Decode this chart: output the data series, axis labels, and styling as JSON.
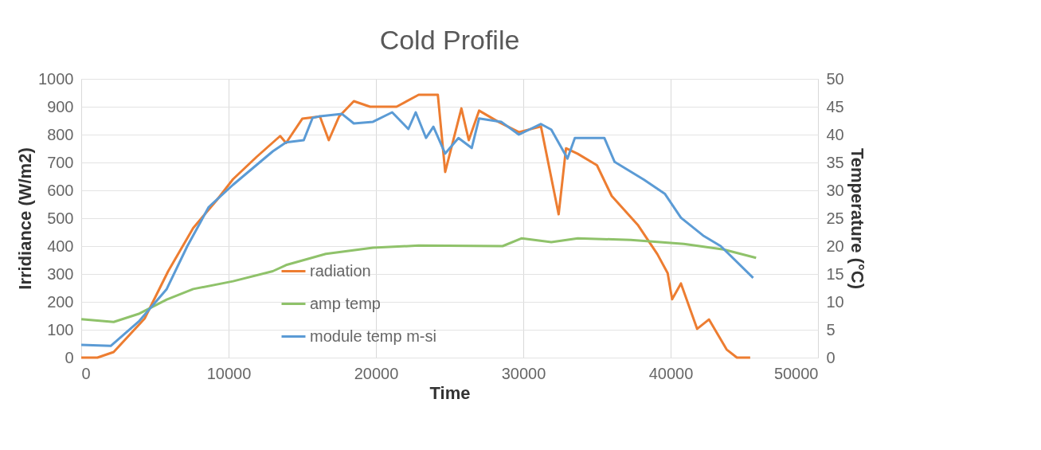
{
  "chart_data": {
    "type": "line",
    "title": "Cold Profile",
    "xlabel": "Time",
    "ylabel": "Irridiance (W/m2)",
    "y2label": "Temperature (°C)",
    "xlim": [
      0,
      50000
    ],
    "xticks": [
      0,
      10000,
      20000,
      30000,
      40000,
      50000
    ],
    "ylim": [
      0,
      1000
    ],
    "yticks": [
      0,
      100,
      200,
      300,
      400,
      500,
      600,
      700,
      800,
      900,
      1000
    ],
    "y2lim": [
      0,
      50
    ],
    "y2ticks": [
      0,
      5,
      10,
      15,
      20,
      25,
      30,
      35,
      40,
      45,
      50
    ],
    "grid": true,
    "legend": "bottom",
    "marker": "none",
    "line_style": "solid",
    "series": [
      {
        "name": "radiation",
        "color": "#ed7d31",
        "x": [
          0,
          1100,
          2200,
          4300,
          5900,
          7600,
          9200,
          10300,
          11900,
          13500,
          13900,
          15000,
          16200,
          16800,
          17500,
          18500,
          19600,
          21400,
          22900,
          24200,
          24700,
          25800,
          26300,
          27000,
          28300,
          29700,
          31200,
          32400,
          32900,
          33700,
          35000,
          36000,
          37800,
          39100,
          39800,
          40100,
          40700,
          41800,
          42600,
          43800,
          44500,
          45400
        ],
        "values": [
          0,
          0,
          20,
          140,
          310,
          465,
          565,
          640,
          720,
          795,
          770,
          857,
          865,
          780,
          865,
          920,
          900,
          900,
          943,
          943,
          666,
          894,
          780,
          886,
          846,
          809,
          829,
          514,
          751,
          731,
          690,
          580,
          474,
          371,
          303,
          209,
          266,
          103,
          137,
          29,
          0,
          0
        ]
      },
      {
        "name": "amp temp",
        "color": "#8fc26a",
        "axis": "y2",
        "x": [
          0,
          2200,
          3950,
          5800,
          7600,
          10300,
          13000,
          13900,
          16600,
          19800,
          22900,
          28600,
          29900,
          31900,
          33700,
          37300,
          40900,
          43600,
          45800
        ],
        "values": [
          6.9,
          6.4,
          7.9,
          10.4,
          12.3,
          13.7,
          15.5,
          16.6,
          18.6,
          19.7,
          20.1,
          20,
          21.4,
          20.7,
          21.4,
          21.1,
          20.4,
          19.4,
          17.9
        ]
      },
      {
        "name": "module temp m-si",
        "color": "#5b9bd5",
        "axis": "y2",
        "x": [
          0,
          2000,
          3950,
          5800,
          7200,
          8650,
          10300,
          13000,
          13900,
          15100,
          15700,
          16200,
          17700,
          18500,
          19800,
          21100,
          22200,
          22700,
          23400,
          23900,
          24700,
          25600,
          26500,
          27000,
          28500,
          29700,
          31200,
          31900,
          33000,
          33500,
          35500,
          36200,
          38200,
          39600,
          40700,
          42200,
          43400,
          45600
        ],
        "values": [
          2.3,
          2.1,
          6.6,
          12.3,
          20,
          27,
          31,
          37,
          38.6,
          39,
          43,
          43.3,
          43.7,
          42,
          42.3,
          44,
          41,
          44,
          39.4,
          41.4,
          36.6,
          39.4,
          37.6,
          42.9,
          42.3,
          40,
          41.9,
          40.9,
          35.7,
          39.4,
          39.4,
          35.1,
          31.9,
          29.4,
          25.1,
          21.9,
          20,
          14.3
        ]
      }
    ]
  }
}
